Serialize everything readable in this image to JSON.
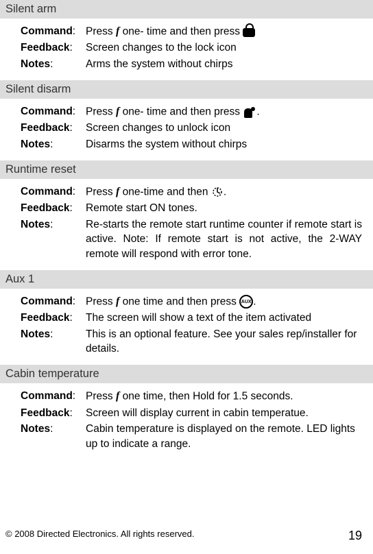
{
  "sections": [
    {
      "title": "Silent arm",
      "command_prefix": "Press ",
      "command_mid": " one- time and then press ",
      "command_suffix": "",
      "icon1": "f",
      "icon2": "lock",
      "feedback": "Screen changes to the lock icon",
      "notes": "Arms the system without chirps",
      "notes_justify": false
    },
    {
      "title": "Silent disarm",
      "command_prefix": "Press ",
      "command_mid": "  one- time and then press  ",
      "command_suffix": ".",
      "icon1": "f",
      "icon2": "unlock",
      "feedback": "Screen changes to unlock icon",
      "notes": "Disarms the system without chirps",
      "notes_justify": false
    },
    {
      "title": "Runtime reset",
      "command_prefix": "Press ",
      "command_mid": " one-time and then ",
      "command_suffix": ".",
      "icon1": "f",
      "icon2": "start",
      "feedback": "Remote start ON tones.",
      "notes": "Re-starts the remote start runtime counter if remote start is active.  Note: If remote start is not active, the 2-WAY remote will respond with error tone.",
      "notes_justify": true
    },
    {
      "title": "Aux 1",
      "command_prefix": "Press ",
      "command_mid": " one time and then press ",
      "command_suffix": ".",
      "icon1": "f",
      "icon2": "aux",
      "feedback": "The screen will show a text of the item activated",
      "notes": "This is an optional feature. See your sales rep/installer for details.",
      "notes_justify": false
    },
    {
      "title": "Cabin temperature",
      "command_prefix": "Press ",
      "command_mid": "  one time, then Hold for 1.5 seconds.",
      "command_suffix": "",
      "icon1": "f",
      "icon2": "none",
      "feedback": "Screen will display current in cabin temperatue.",
      "notes": "Cabin temperature is displayed on the remote. LED lights up to indicate a range.",
      "notes_justify": false
    }
  ],
  "labels": {
    "command": "Command",
    "feedback": "Feedback",
    "notes": "Notes"
  },
  "footer": {
    "copyright": "© 2008 Directed Electronics. All rights reserved.",
    "page": "19"
  },
  "colors": {
    "header_bg": "#dcdcdc",
    "text": "#000000",
    "bg": "#ffffff"
  }
}
